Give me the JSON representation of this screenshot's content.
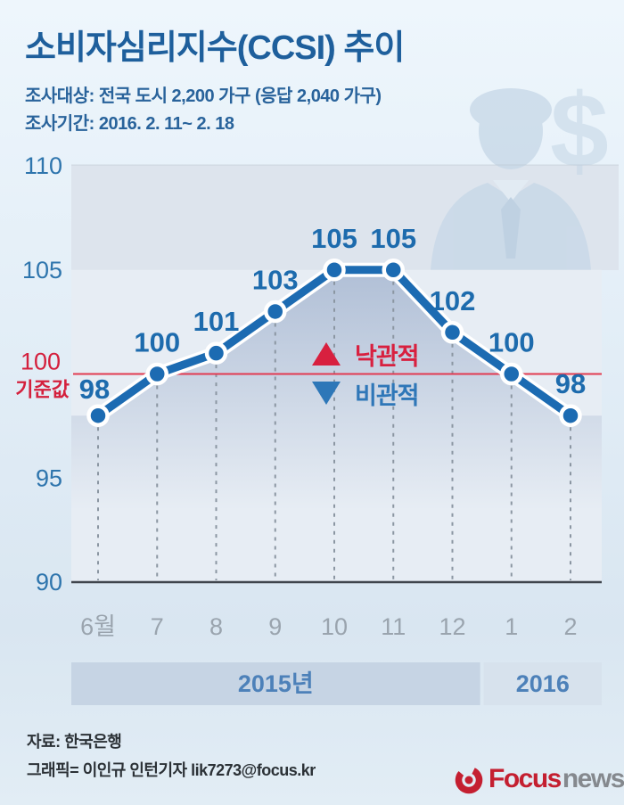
{
  "header": {
    "title": "소비자심리지수(CCSI) 추이",
    "subtitle1": "조사대상: 전국 도시 2,200 가구 (응답 2,040 가구)",
    "subtitle2": "조사기간: 2016. 2. 11~ 2. 18"
  },
  "chart_data": {
    "type": "line",
    "title": "소비자심리지수(CCSI) 추이",
    "categories": [
      "6월",
      "7",
      "8",
      "9",
      "10",
      "11",
      "12",
      "1",
      "2"
    ],
    "values": [
      98,
      100,
      101,
      103,
      105,
      105,
      102,
      100,
      98
    ],
    "ylim": [
      90,
      110
    ],
    "yticks": [
      90,
      95,
      100,
      105,
      110
    ],
    "grid": "vertical-dashed",
    "baseline": {
      "value": 100,
      "label_value": "100",
      "label_name": "기준값",
      "color": "#e23a50"
    },
    "legend": [
      {
        "symbol": "▲",
        "label": "낙관적",
        "color": "#d8203f"
      },
      {
        "symbol": "▼",
        "label": "비관적",
        "color": "#2d77b8"
      }
    ],
    "legend_position": "center",
    "year_groups": [
      {
        "label": "2015년",
        "from": 0,
        "to": 6,
        "bar_color": "#c6d4e4"
      },
      {
        "label": "2016",
        "from": 7,
        "to": 8,
        "bar_color": "#d7e2ed"
      }
    ],
    "line_color": "#1c6bb2",
    "label_color": "#1d6bad",
    "tick_color": "#2e75ad",
    "month_color": "#9aa4ae"
  },
  "footer": {
    "source": "자료: 한국은행",
    "credit": "그래픽= 이인규 인턴기자 lik7273@focus.kr",
    "logo": {
      "brand": "Focus",
      "suffix": "news"
    }
  }
}
